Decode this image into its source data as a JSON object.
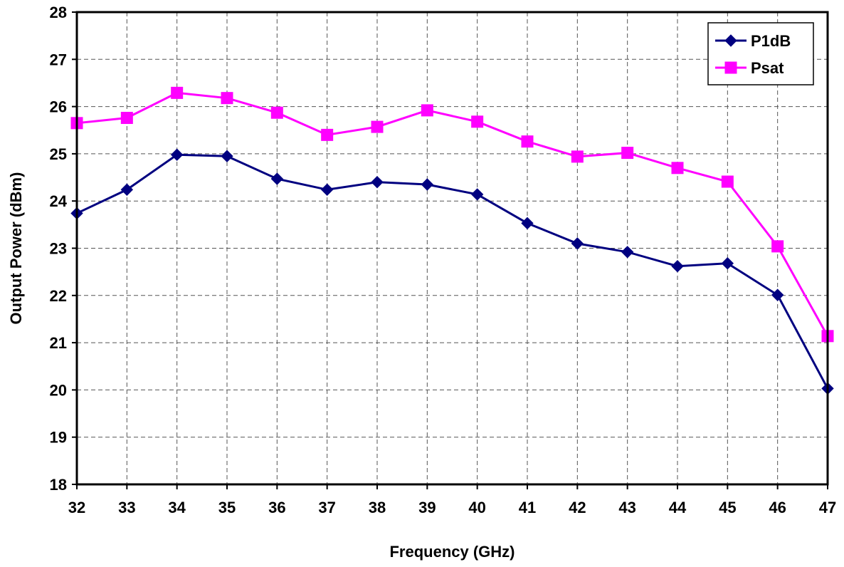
{
  "chart_data": {
    "type": "line",
    "title": "",
    "xlabel": "Frequency (GHz)",
    "ylabel": "Output Power (dBm)",
    "xlim": [
      32,
      47
    ],
    "ylim": [
      18,
      28
    ],
    "x_ticks": [
      "32",
      "33",
      "34",
      "35",
      "36",
      "37",
      "38",
      "39",
      "40",
      "41",
      "42",
      "43",
      "44",
      "45",
      "46",
      "47"
    ],
    "y_ticks": [
      "18",
      "19",
      "20",
      "21",
      "22",
      "23",
      "24",
      "25",
      "26",
      "27",
      "28"
    ],
    "grid": true,
    "legend_position": "top-right",
    "x": [
      32,
      33,
      34,
      35,
      36,
      37,
      38,
      39,
      40,
      41,
      42,
      43,
      44,
      45,
      46,
      47
    ],
    "series": [
      {
        "name": "P1dB",
        "color": "#000080",
        "marker": "diamond",
        "values": [
          23.74,
          24.24,
          24.98,
          24.95,
          24.47,
          24.24,
          24.4,
          24.35,
          24.14,
          23.53,
          23.1,
          22.92,
          22.62,
          22.68,
          22.01,
          20.03
        ]
      },
      {
        "name": "Psat",
        "color": "#ff00ff",
        "marker": "square",
        "values": [
          25.65,
          25.76,
          26.29,
          26.18,
          25.87,
          25.4,
          25.57,
          25.92,
          25.68,
          25.26,
          24.94,
          25.02,
          24.7,
          24.41,
          23.04,
          21.14
        ]
      }
    ]
  }
}
